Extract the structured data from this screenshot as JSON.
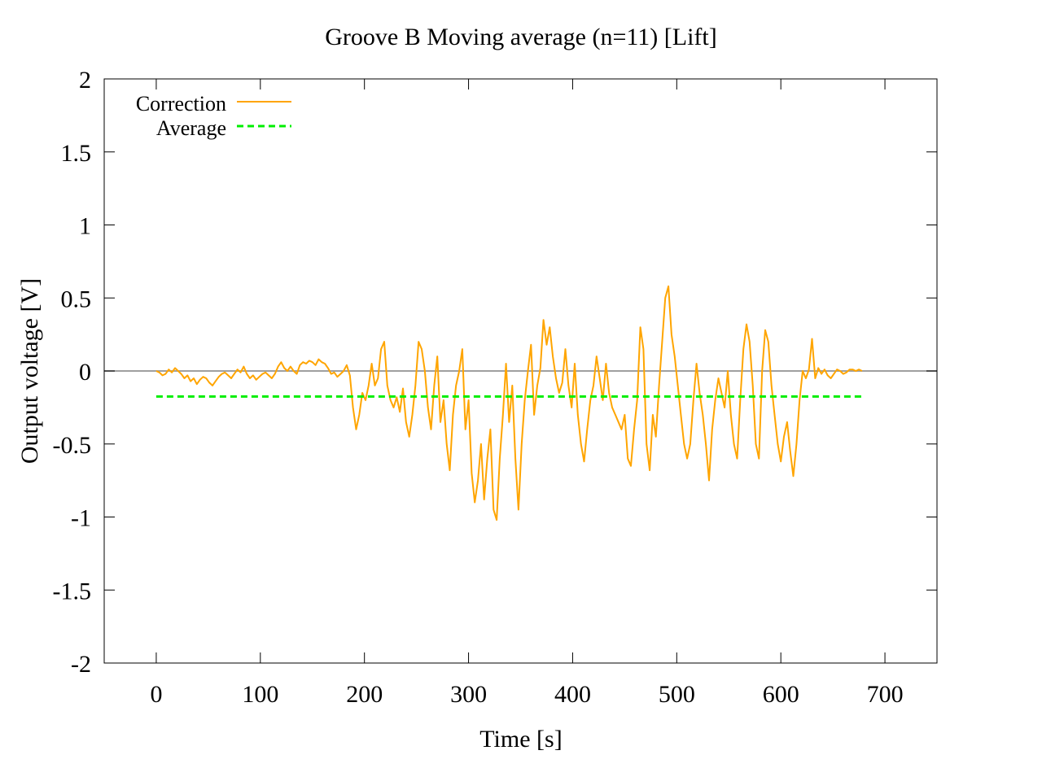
{
  "chart_data": {
    "type": "line",
    "title": "Groove B  Moving average (n=11) [Lift]",
    "xlabel": "Time [s]",
    "ylabel": "Output voltage [V]",
    "xlim": [
      -50,
      750
    ],
    "ylim": [
      -2,
      2
    ],
    "xticks": [
      0,
      100,
      200,
      300,
      400,
      500,
      600,
      700
    ],
    "xtick_labels": [
      "0",
      "100",
      "200",
      "300",
      "400",
      "500",
      "600",
      "700"
    ],
    "yticks": [
      -2,
      -1.5,
      -1,
      -0.5,
      0,
      0.5,
      1,
      1.5,
      2
    ],
    "ytick_labels": [
      "-2",
      "-1.5",
      "-1",
      "-0.5",
      "0",
      "0.5",
      "1",
      "1.5",
      "2"
    ],
    "grid": false,
    "legend_position": "top-left",
    "zero_line": {
      "y": 0,
      "color": "#a0a0a0"
    },
    "series": [
      {
        "name": "Correction",
        "color": "#ffa500",
        "style": "solid",
        "x": [
          0,
          3,
          6,
          9,
          12,
          15,
          18,
          21,
          24,
          27,
          30,
          33,
          36,
          39,
          42,
          45,
          48,
          51,
          54,
          57,
          60,
          63,
          66,
          69,
          72,
          75,
          78,
          81,
          84,
          87,
          90,
          93,
          96,
          99,
          102,
          105,
          108,
          111,
          114,
          117,
          120,
          123,
          126,
          129,
          132,
          135,
          138,
          141,
          144,
          147,
          150,
          153,
          156,
          159,
          162,
          165,
          168,
          171,
          174,
          177,
          180,
          183,
          186,
          189,
          192,
          195,
          198,
          201,
          204,
          207,
          210,
          213,
          216,
          219,
          222,
          225,
          228,
          231,
          234,
          237,
          240,
          243,
          246,
          249,
          252,
          255,
          258,
          261,
          264,
          267,
          270,
          273,
          276,
          279,
          282,
          285,
          288,
          291,
          294,
          297,
          300,
          303,
          306,
          309,
          312,
          315,
          318,
          321,
          324,
          327,
          330,
          333,
          336,
          339,
          342,
          345,
          348,
          351,
          354,
          357,
          360,
          363,
          366,
          369,
          372,
          375,
          378,
          381,
          384,
          387,
          390,
          393,
          396,
          399,
          402,
          405,
          408,
          411,
          414,
          417,
          420,
          423,
          426,
          429,
          432,
          435,
          438,
          441,
          444,
          447,
          450,
          453,
          456,
          459,
          462,
          465,
          468,
          471,
          474,
          477,
          480,
          483,
          486,
          489,
          492,
          495,
          498,
          501,
          504,
          507,
          510,
          513,
          516,
          519,
          522,
          525,
          528,
          531,
          534,
          537,
          540,
          543,
          546,
          549,
          552,
          555,
          558,
          561,
          564,
          567,
          570,
          573,
          576,
          579,
          582,
          585,
          588,
          591,
          594,
          597,
          600,
          603,
          606,
          609,
          612,
          615,
          618,
          621,
          624,
          627,
          630,
          633,
          636,
          639,
          642,
          645,
          648,
          651,
          654,
          657,
          660,
          663,
          666,
          669,
          672,
          675,
          678
        ],
        "y": [
          0.0,
          -0.01,
          -0.03,
          -0.02,
          0.01,
          -0.01,
          0.02,
          0.0,
          -0.02,
          -0.05,
          -0.03,
          -0.07,
          -0.05,
          -0.09,
          -0.06,
          -0.04,
          -0.05,
          -0.08,
          -0.1,
          -0.07,
          -0.04,
          -0.02,
          -0.01,
          -0.03,
          -0.05,
          -0.02,
          0.01,
          -0.01,
          0.03,
          -0.02,
          -0.05,
          -0.03,
          -0.06,
          -0.04,
          -0.02,
          -0.01,
          -0.03,
          -0.05,
          -0.02,
          0.03,
          0.06,
          0.02,
          0.0,
          0.03,
          0.0,
          -0.02,
          0.04,
          0.06,
          0.05,
          0.07,
          0.06,
          0.04,
          0.08,
          0.06,
          0.05,
          0.02,
          -0.02,
          -0.01,
          -0.04,
          -0.02,
          0.0,
          0.04,
          -0.03,
          -0.25,
          -0.4,
          -0.3,
          -0.15,
          -0.2,
          -0.1,
          0.05,
          -0.1,
          -0.05,
          0.15,
          0.2,
          -0.1,
          -0.2,
          -0.25,
          -0.18,
          -0.28,
          -0.12,
          -0.35,
          -0.45,
          -0.3,
          -0.1,
          0.2,
          0.15,
          0.0,
          -0.25,
          -0.4,
          -0.1,
          0.1,
          -0.35,
          -0.2,
          -0.5,
          -0.68,
          -0.3,
          -0.1,
          0.0,
          0.15,
          -0.4,
          -0.2,
          -0.7,
          -0.9,
          -0.75,
          -0.5,
          -0.88,
          -0.6,
          -0.4,
          -0.95,
          -1.02,
          -0.6,
          -0.3,
          0.05,
          -0.35,
          -0.1,
          -0.6,
          -0.95,
          -0.5,
          -0.2,
          0.0,
          0.18,
          -0.3,
          -0.1,
          0.02,
          0.35,
          0.18,
          0.3,
          0.1,
          -0.05,
          -0.15,
          -0.08,
          0.15,
          -0.1,
          -0.25,
          0.05,
          -0.3,
          -0.5,
          -0.62,
          -0.4,
          -0.2,
          -0.1,
          0.1,
          -0.05,
          -0.2,
          0.05,
          -0.15,
          -0.25,
          -0.3,
          -0.35,
          -0.4,
          -0.3,
          -0.6,
          -0.65,
          -0.4,
          -0.2,
          0.3,
          0.15,
          -0.5,
          -0.68,
          -0.3,
          -0.45,
          -0.1,
          0.2,
          0.5,
          0.58,
          0.25,
          0.1,
          -0.1,
          -0.3,
          -0.5,
          -0.6,
          -0.5,
          -0.2,
          0.05,
          -0.15,
          -0.3,
          -0.5,
          -0.75,
          -0.4,
          -0.2,
          -0.05,
          -0.15,
          -0.25,
          0.0,
          -0.3,
          -0.5,
          -0.6,
          -0.2,
          0.15,
          0.32,
          0.2,
          -0.1,
          -0.5,
          -0.6,
          0.0,
          0.28,
          0.2,
          -0.1,
          -0.3,
          -0.5,
          -0.62,
          -0.45,
          -0.35,
          -0.55,
          -0.72,
          -0.5,
          -0.2,
          0.0,
          -0.05,
          0.01,
          0.22,
          -0.05,
          0.02,
          -0.02,
          0.01,
          -0.03,
          -0.05,
          -0.02,
          0.01,
          0.0,
          -0.02,
          -0.01,
          0.01,
          0.01,
          0.0,
          0.01,
          0.0
        ]
      },
      {
        "name": "Average",
        "color": "#00ee00",
        "style": "dashed",
        "x": [
          0,
          678
        ],
        "y": [
          -0.175,
          -0.175
        ]
      }
    ]
  }
}
